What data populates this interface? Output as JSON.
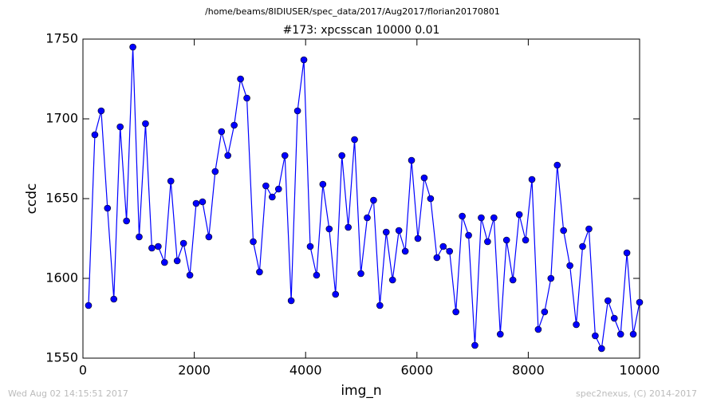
{
  "chart_data": {
    "type": "line",
    "suptitle": "/home/beams/8IDIUSER/spec_data/2017/Aug2017/florian20170801",
    "title": "#173: xpcsscan 10000 0.01",
    "xlabel": "img_n",
    "ylabel": "ccdc",
    "footer_left": "Wed Aug 02 14:15:51 2017",
    "footer_right": "spec2nexus, (C) 2014-2017",
    "xlim": [
      0,
      10000
    ],
    "xticks": [
      0,
      2000,
      4000,
      6000,
      8000,
      10000
    ],
    "ylim": [
      1550,
      1750
    ],
    "yticks": [
      1550,
      1600,
      1650,
      1700,
      1750
    ],
    "grid": false,
    "x": [
      100,
      214,
      328,
      441,
      555,
      669,
      783,
      897,
      1010,
      1124,
      1238,
      1352,
      1466,
      1579,
      1693,
      1807,
      1921,
      2034,
      2148,
      2262,
      2376,
      2490,
      2603,
      2717,
      2831,
      2945,
      3059,
      3172,
      3286,
      3400,
      3514,
      3628,
      3741,
      3855,
      3969,
      4083,
      4197,
      4310,
      4424,
      4538,
      4652,
      4766,
      4879,
      4993,
      5107,
      5221,
      5334,
      5448,
      5562,
      5676,
      5790,
      5903,
      6017,
      6131,
      6245,
      6359,
      6472,
      6586,
      6700,
      6814,
      6928,
      7041,
      7155,
      7269,
      7383,
      7497,
      7610,
      7724,
      7838,
      7952,
      8066,
      8179,
      8293,
      8407,
      8521,
      8634,
      8748,
      8862,
      8976,
      9090,
      9203,
      9317,
      9431,
      9545,
      9659,
      9772,
      9886,
      10000
    ],
    "series": [
      {
        "color": "#0000ff",
        "values": [
          1583,
          1690,
          1705,
          1644,
          1587,
          1695,
          1636,
          1745,
          1626,
          1697,
          1619,
          1620,
          1610,
          1661,
          1611,
          1622,
          1602,
          1647,
          1648,
          1626,
          1667,
          1692,
          1677,
          1696,
          1725,
          1713,
          1623,
          1604,
          1658,
          1651,
          1656,
          1677,
          1586,
          1705,
          1737,
          1620,
          1602,
          1659,
          1631,
          1590,
          1677,
          1632,
          1687,
          1603,
          1638,
          1649,
          1583,
          1629,
          1599,
          1630,
          1617,
          1674,
          1625,
          1663,
          1650,
          1613,
          1620,
          1617,
          1579,
          1639,
          1627,
          1558,
          1638,
          1623,
          1638,
          1565,
          1624,
          1599,
          1640,
          1624,
          1662,
          1568,
          1579,
          1600,
          1671,
          1630,
          1608,
          1571,
          1620,
          1631,
          1564,
          1556,
          1586,
          1575,
          1565,
          1616,
          1565,
          1585
        ]
      }
    ]
  }
}
